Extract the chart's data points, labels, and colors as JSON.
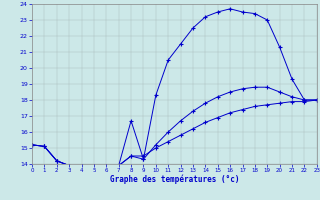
{
  "xlabel": "Graphe des températures (°c)",
  "xlim": [
    0,
    23
  ],
  "ylim": [
    14,
    24
  ],
  "yticks": [
    14,
    15,
    16,
    17,
    18,
    19,
    20,
    21,
    22,
    23,
    24
  ],
  "xticks": [
    0,
    1,
    2,
    3,
    4,
    5,
    6,
    7,
    8,
    9,
    10,
    11,
    12,
    13,
    14,
    15,
    16,
    17,
    18,
    19,
    20,
    21,
    22,
    23
  ],
  "bg_color": "#cce8e8",
  "line_color": "#0000cc",
  "line1_x": [
    0,
    1,
    2,
    3,
    4,
    5,
    6,
    7,
    8,
    9,
    10,
    11,
    12,
    13,
    14,
    15,
    16,
    17,
    18,
    19,
    20,
    21,
    22,
    23
  ],
  "line1_y": [
    15.2,
    15.1,
    14.2,
    13.9,
    13.9,
    13.9,
    13.9,
    13.9,
    16.7,
    14.3,
    18.3,
    20.5,
    21.5,
    22.5,
    23.2,
    23.5,
    23.7,
    23.5,
    23.4,
    23.0,
    21.3,
    19.3,
    18.0,
    18.0
  ],
  "line2_x": [
    0,
    1,
    2,
    3,
    4,
    5,
    6,
    7,
    8,
    9,
    10,
    11,
    12,
    13,
    14,
    15,
    16,
    17,
    18,
    19,
    20,
    21,
    22,
    23
  ],
  "line2_y": [
    15.2,
    15.1,
    14.2,
    13.9,
    13.9,
    13.9,
    13.9,
    13.9,
    14.5,
    14.3,
    15.2,
    16.0,
    16.7,
    17.3,
    17.8,
    18.2,
    18.5,
    18.7,
    18.8,
    18.8,
    18.5,
    18.2,
    18.0,
    18.0
  ],
  "line3_x": [
    0,
    1,
    2,
    3,
    4,
    5,
    6,
    7,
    8,
    9,
    10,
    11,
    12,
    13,
    14,
    15,
    16,
    17,
    18,
    19,
    20,
    21,
    22,
    23
  ],
  "line3_y": [
    15.2,
    15.1,
    14.2,
    13.9,
    13.9,
    13.9,
    13.9,
    13.9,
    14.5,
    14.5,
    15.0,
    15.4,
    15.8,
    16.2,
    16.6,
    16.9,
    17.2,
    17.4,
    17.6,
    17.7,
    17.8,
    17.9,
    17.9,
    18.0
  ]
}
